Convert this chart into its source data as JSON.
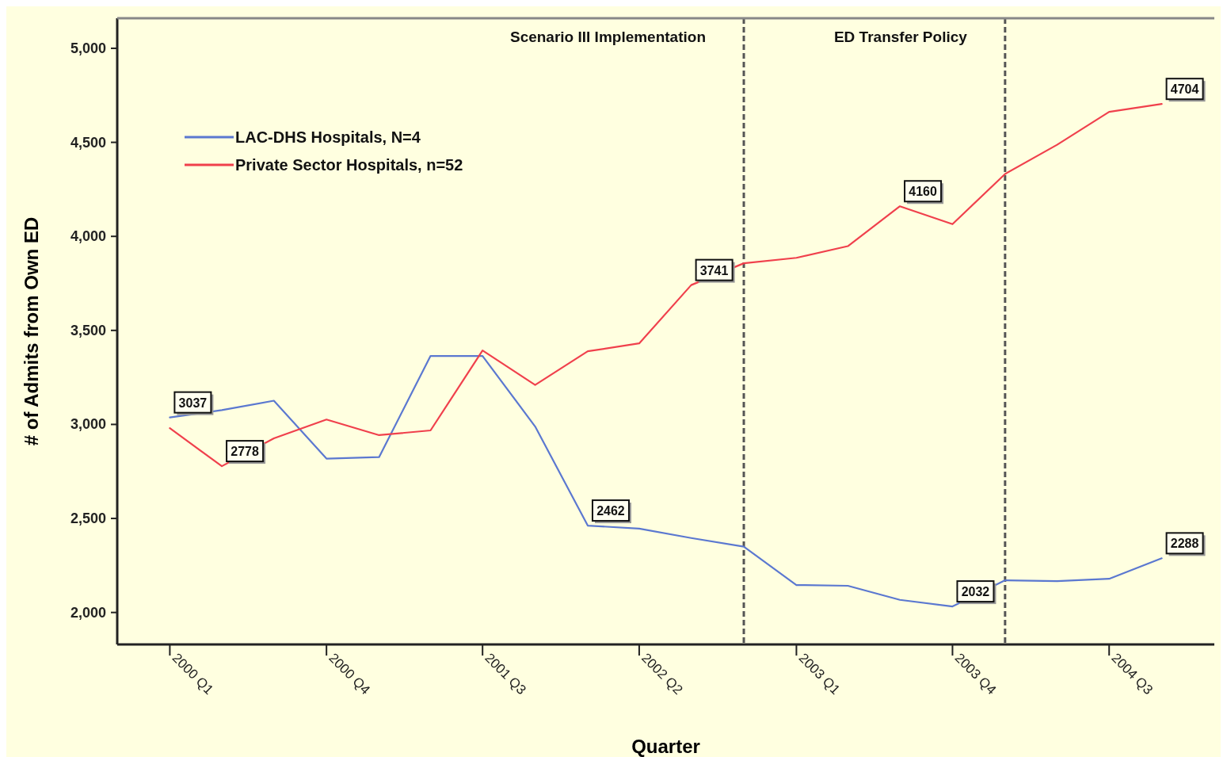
{
  "chart_data": {
    "type": "line",
    "xlabel": "Quarter",
    "ylabel": "# of Admits from Own ED",
    "x": [
      "2000-01",
      "2000-04",
      "2000-07",
      "2000-10",
      "2001-01",
      "2001-04",
      "2001-07",
      "2001-10",
      "2002-01",
      "2002-04",
      "2002-07",
      "2002-10",
      "2003-01",
      "2003-04",
      "2003-07",
      "2003-10",
      "2004-01",
      "2004-04",
      "2004-07",
      "2004-10"
    ],
    "series": [
      {
        "name": "LAC-DHS Hospitals, N=4",
        "color": "#5b78d0",
        "values": [
          3037,
          3076,
          3126,
          2818,
          2826,
          3364,
          3364,
          2989,
          2462,
          2446,
          2396,
          2350,
          2146,
          2142,
          2067,
          2032,
          2171,
          2167,
          2179,
          2288
        ],
        "value_labels": [
          "3037",
          null,
          null,
          null,
          null,
          null,
          null,
          null,
          "2462",
          null,
          null,
          null,
          null,
          null,
          null,
          "2032",
          null,
          null,
          null,
          "2288"
        ]
      },
      {
        "name": "Private Sector Hospitals, n=52",
        "color": "#f0404c",
        "values": [
          2980,
          2778,
          2926,
          3026,
          2943,
          2968,
          3393,
          3210,
          3389,
          3431,
          3741,
          3857,
          3886,
          3948,
          4160,
          4065,
          4332,
          4487,
          4662,
          4704
        ],
        "value_labels": [
          null,
          "2778",
          null,
          null,
          null,
          null,
          null,
          null,
          null,
          null,
          "3741",
          null,
          null,
          null,
          "4160",
          null,
          null,
          null,
          null,
          "4704"
        ]
      }
    ],
    "xlim": [
      "1999-10",
      "2005-01"
    ],
    "xticks": [
      {
        "value": "2000-01",
        "label": "2000 Q1"
      },
      {
        "value": "2000-10",
        "label": "2000 Q4"
      },
      {
        "value": "2001-07",
        "label": "2001 Q3"
      },
      {
        "value": "2002-04",
        "label": "2002 Q2"
      },
      {
        "value": "2003-01",
        "label": "2003 Q1"
      },
      {
        "value": "2003-10",
        "label": "2003 Q4"
      },
      {
        "value": "2004-07",
        "label": "2004 Q3"
      }
    ],
    "ylim": [
      1830,
      5160
    ],
    "yticks": [
      {
        "value": 2000,
        "label": "2,000"
      },
      {
        "value": 2500,
        "label": "2,500"
      },
      {
        "value": 3000,
        "label": "3,000"
      },
      {
        "value": 3500,
        "label": "3,500"
      },
      {
        "value": 4000,
        "label": "4,000"
      },
      {
        "value": 4500,
        "label": "4,500"
      },
      {
        "value": 5000,
        "label": "5,000"
      }
    ],
    "ref_lines": [
      {
        "axis": "x",
        "value": "2002-10",
        "label": "Scenario III Implementation",
        "color": "#555555",
        "line_style": "dashed"
      },
      {
        "axis": "x",
        "value": "2004-01",
        "label": "ED Transfer Policy",
        "color": "#555555",
        "line_style": "dashed"
      }
    ],
    "legend": "top left",
    "grid": false,
    "marker": "none",
    "line_style": "solid"
  }
}
